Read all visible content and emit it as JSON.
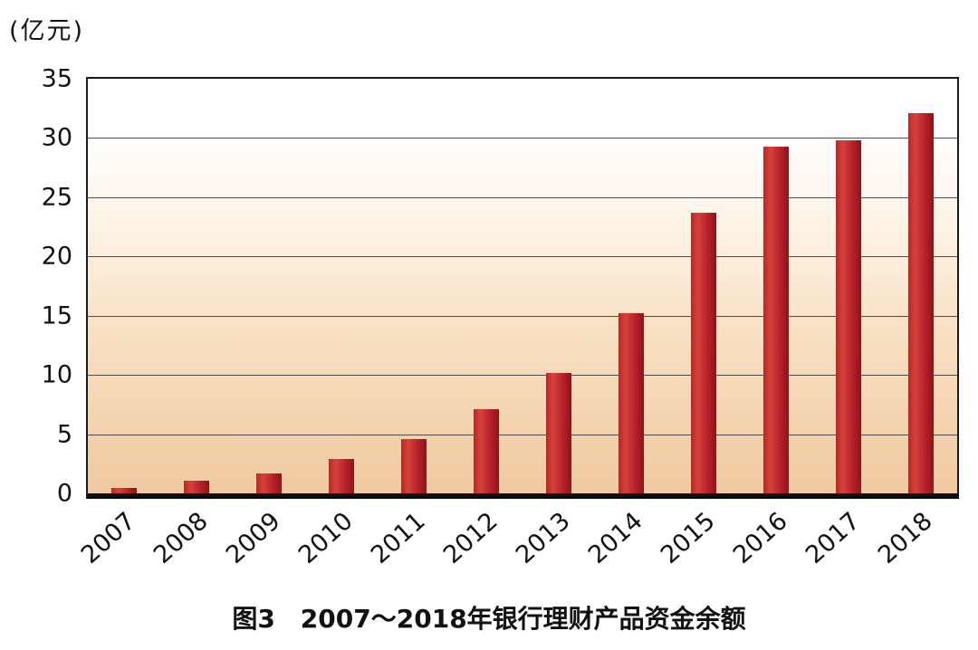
{
  "chart_data": {
    "type": "bar",
    "title": "图3　2007～2018年银行理财产品资金余额",
    "ylabel": "(亿元)",
    "categories": [
      "2007",
      "2008",
      "2009",
      "2010",
      "2011",
      "2012",
      "2013",
      "2014",
      "2015",
      "2016",
      "2017",
      "2018"
    ],
    "values": [
      0.5,
      1.1,
      1.7,
      2.9,
      4.6,
      7.1,
      10.2,
      15.2,
      23.7,
      29.3,
      29.8,
      32.1
    ],
    "ylim": [
      0,
      35
    ],
    "ytick_step": 5,
    "yticks": [
      0,
      5,
      10,
      15,
      20,
      25,
      30,
      35
    ],
    "grid": true,
    "legend_position": "none",
    "bar_colors": {
      "light": "#d4443c",
      "base": "#be2328",
      "dark": "#8c1318"
    },
    "plot_bg": {
      "top": "#ffffff",
      "bottom": "#f0c9a0"
    },
    "axis_color": "#0d0d0d",
    "gridline_color": "#4d4d4d"
  }
}
